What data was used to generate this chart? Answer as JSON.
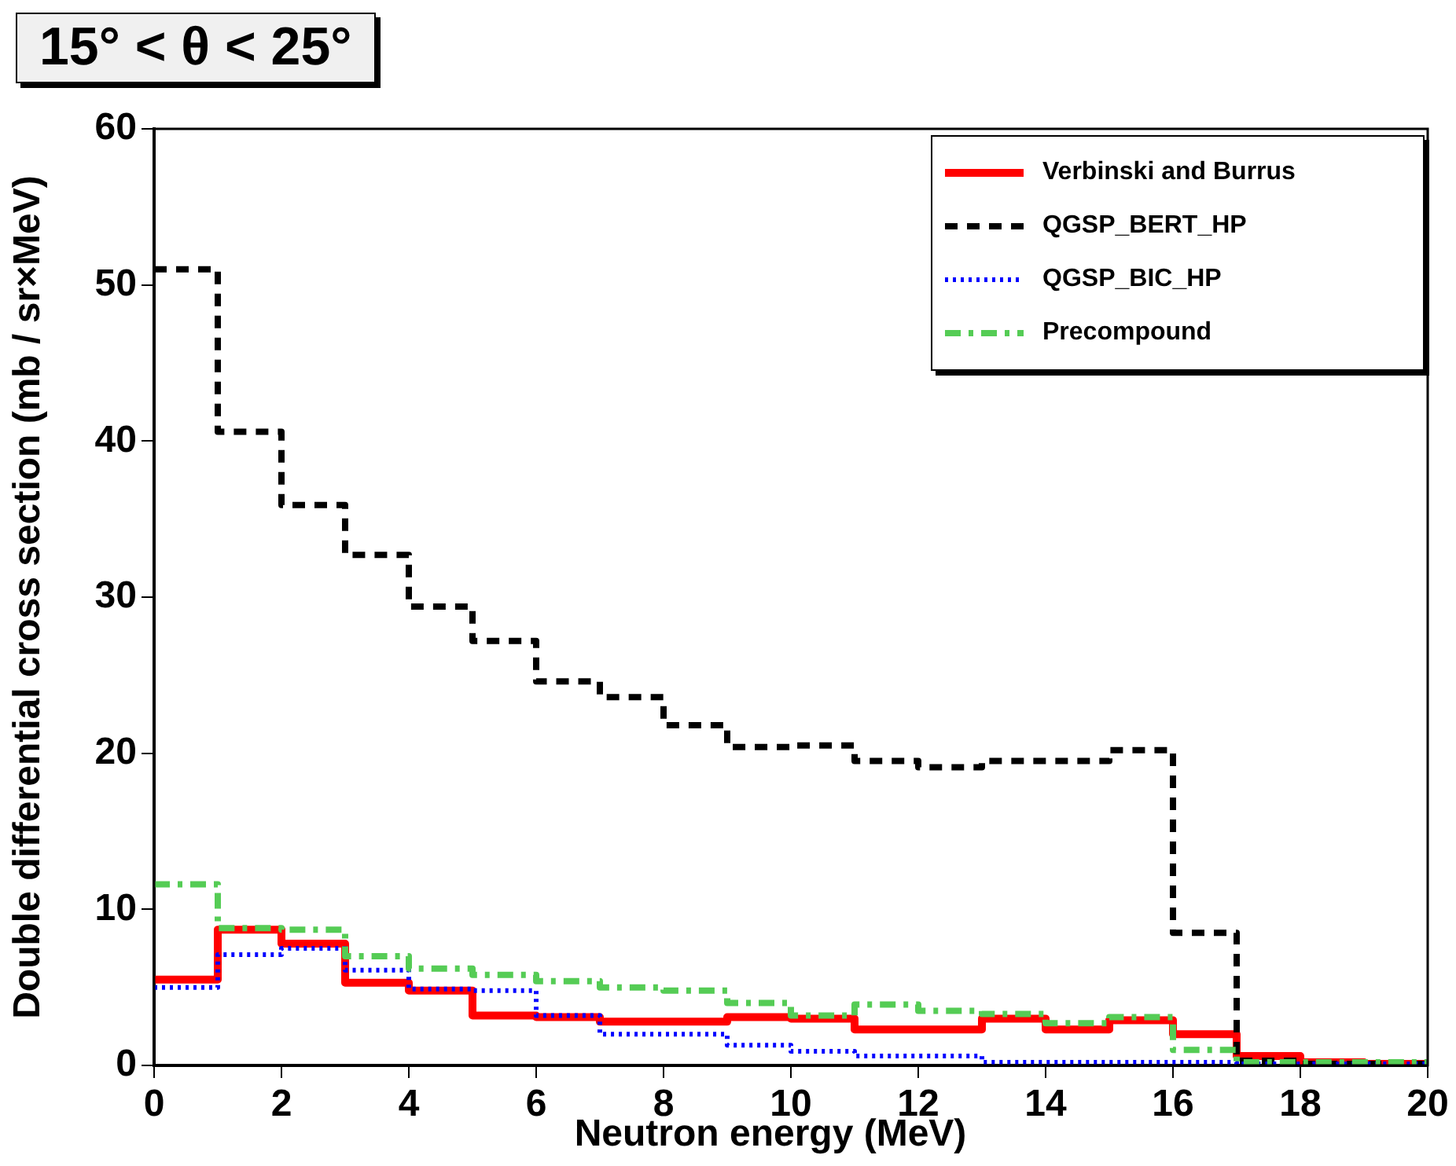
{
  "chart_data": {
    "type": "histogram",
    "title": "15° < θ < 25°",
    "xlabel": "Neutron energy (MeV)",
    "ylabel": "Double differential cross section (mb / sr×MeV)",
    "bins": [
      0,
      1,
      2,
      3,
      4,
      5,
      6,
      7,
      8,
      9,
      10,
      11,
      12,
      13,
      14,
      15,
      16,
      17,
      18,
      19,
      20
    ],
    "series": [
      {
        "name": "Verbinski and Burrus",
        "color": "#ff0000",
        "line_style": "solid",
        "values": [
          5.5,
          8.7,
          7.8,
          5.3,
          4.8,
          3.2,
          3.1,
          2.8,
          2.8,
          3.1,
          3.0,
          2.3,
          2.3,
          3.0,
          2.3,
          2.9,
          2.0,
          0.6,
          0.2,
          0.1
        ]
      },
      {
        "name": "QGSP_BERT_HP",
        "color": "#000000",
        "line_style": "dashed",
        "values": [
          51,
          40.6,
          35.9,
          32.7,
          29.4,
          27.2,
          24.6,
          23.6,
          21.8,
          20.4,
          20.5,
          19.5,
          19.1,
          19.5,
          19.5,
          20.2,
          8.5,
          0.3,
          0.1,
          0.1
        ]
      },
      {
        "name": "QGSP_BIC_HP",
        "color": "#0000ff",
        "line_style": "dotted",
        "values": [
          5.0,
          7.1,
          7.5,
          6.1,
          4.9,
          4.8,
          3.2,
          2.0,
          2.0,
          1.3,
          0.9,
          0.6,
          0.6,
          0.2,
          0.2,
          0.2,
          0.2,
          0.1,
          0.1,
          0.1
        ]
      },
      {
        "name": "Precompound",
        "color": "#55cc55",
        "line_style": "dashdot",
        "values": [
          11.6,
          8.8,
          8.7,
          7.0,
          6.2,
          5.8,
          5.4,
          5.0,
          4.8,
          4.0,
          3.2,
          3.9,
          3.5,
          3.3,
          2.7,
          3.1,
          1.0,
          0.2,
          0.2,
          0.2
        ]
      }
    ],
    "xlim": [
      0,
      20
    ],
    "xticks": [
      0,
      2,
      4,
      6,
      8,
      10,
      12,
      14,
      16,
      18,
      20
    ],
    "ylim": [
      0,
      60
    ],
    "yticks": [
      0,
      10,
      20,
      30,
      40,
      50,
      60
    ],
    "grid": false,
    "legend": "top right"
  }
}
